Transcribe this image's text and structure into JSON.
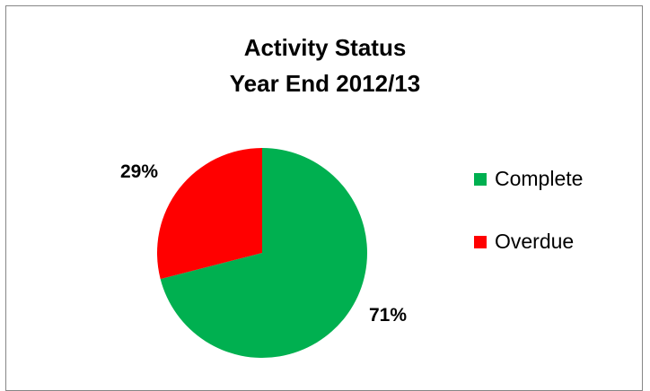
{
  "chart_data": {
    "type": "pie",
    "title": "Activity Status",
    "subtitle": "Year End 2012/13",
    "categories": [
      "Complete",
      "Overdue"
    ],
    "values": [
      71,
      29
    ],
    "value_labels": [
      "71%",
      "29%"
    ],
    "colors": [
      "#00b050",
      "#ff0000"
    ],
    "legend_position": "right"
  }
}
